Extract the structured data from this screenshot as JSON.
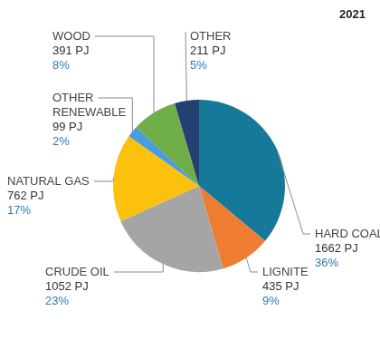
{
  "chart_data": {
    "type": "pie",
    "title": "2021",
    "categories": [
      "HARD COAL",
      "LIGNITE",
      "CRUDE OIL",
      "NATURAL GAS",
      "OTHER RENEWABLE",
      "WOOD",
      "OTHER"
    ],
    "values": [
      1662,
      435,
      1052,
      762,
      99,
      391,
      211
    ],
    "value_labels": [
      "1662 PJ",
      "435 PJ",
      "1052 PJ",
      "762 PJ",
      "99 PJ",
      "391 PJ",
      "211 PJ"
    ],
    "percent_labels": [
      "36%",
      "9%",
      "23%",
      "17%",
      "2%",
      "8%",
      "5%"
    ],
    "colors": [
      "#16799a",
      "#ee7d31",
      "#a5a5a5",
      "#fcc10c",
      "#4a9be0",
      "#6fae47",
      "#253f73"
    ],
    "data_labels": true
  }
}
